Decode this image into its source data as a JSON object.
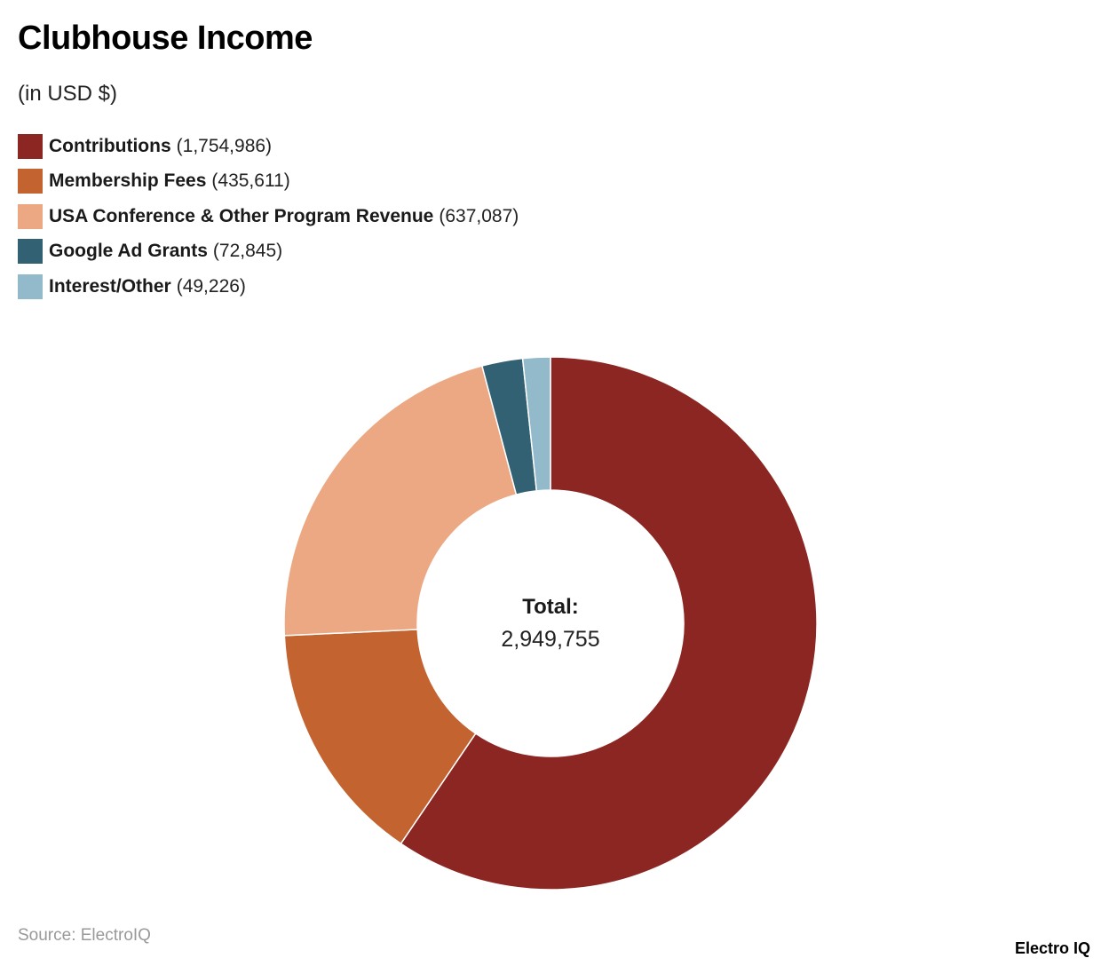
{
  "header": {
    "title": "Clubhouse Income",
    "subtitle": "(in USD $)"
  },
  "legend": {
    "items": [
      {
        "label": "Contributions",
        "value": "(1,754,986)",
        "color": "#8b2622"
      },
      {
        "label": "Membership Fees",
        "value": "(435,611)",
        "color": "#c36330"
      },
      {
        "label": "USA Conference & Other Program Revenue",
        "value": "(637,087)",
        "color": "#eca882"
      },
      {
        "label": "Google Ad Grants",
        "value": "(72,845)",
        "color": "#336174"
      },
      {
        "label": "Interest/Other",
        "value": "(49,226)",
        "color": "#92bacb"
      }
    ]
  },
  "center": {
    "label": "Total:",
    "value": "2,949,755"
  },
  "footer": {
    "source": "Source: ElectroIQ",
    "brand": "Electro IQ"
  },
  "chart_data": {
    "type": "pie",
    "variant": "donut",
    "title": "Clubhouse Income",
    "subtitle": "(in USD $)",
    "categories": [
      "Contributions",
      "Membership Fees",
      "USA Conference & Other Program Revenue",
      "Google Ad Grants",
      "Interest/Other"
    ],
    "values": [
      1754986,
      435611,
      637087,
      72845,
      49226
    ],
    "colors": [
      "#8b2622",
      "#c36330",
      "#eca882",
      "#336174",
      "#92bacb"
    ],
    "total": 2949755,
    "center_text": "Total: 2,949,755",
    "legend_position": "top-left",
    "start_angle": "12 o'clock, clockwise",
    "source": "Source: ElectroIQ"
  }
}
